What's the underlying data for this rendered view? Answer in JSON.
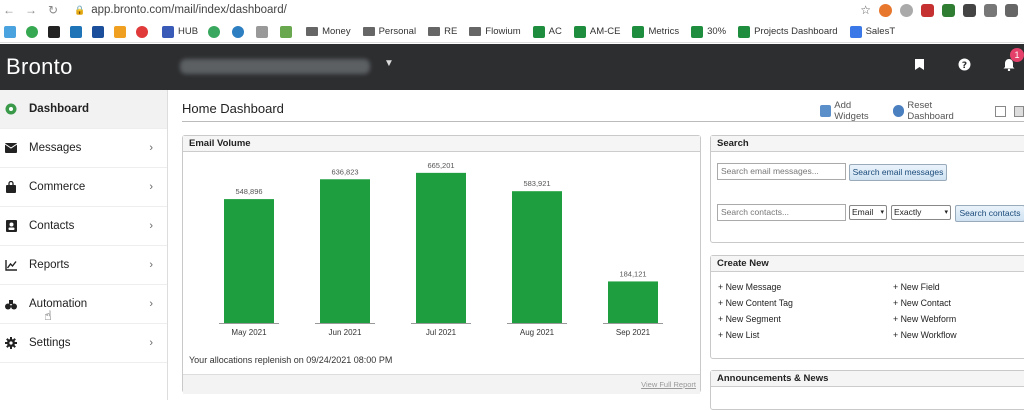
{
  "browser": {
    "url": "app.bronto.com/mail/index/dashboard/",
    "bookmarks": [
      "HUB",
      "Money",
      "Personal",
      "RE",
      "Flowium",
      "AC",
      "AM-CE",
      "Metrics",
      "30%",
      "Projects Dashboard",
      "SalesT"
    ]
  },
  "header": {
    "logo": "Bronto",
    "notification_count": "1"
  },
  "sidebar": {
    "items": [
      {
        "label": "Dashboard",
        "icon": "dashboard-icon"
      },
      {
        "label": "Messages",
        "icon": "envelope-icon"
      },
      {
        "label": "Commerce",
        "icon": "bag-icon"
      },
      {
        "label": "Contacts",
        "icon": "contacts-icon"
      },
      {
        "label": "Reports",
        "icon": "chart-icon"
      },
      {
        "label": "Automation",
        "icon": "automation-icon"
      },
      {
        "label": "Settings",
        "icon": "gear-icon"
      }
    ]
  },
  "main": {
    "title": "Home Dashboard",
    "add_widgets": "Add Widgets",
    "reset_dashboard": "Reset Dashboard"
  },
  "email_volume": {
    "title": "Email Volume",
    "allocation_note": "Your allocations replenish on 09/24/2021 08:00 PM",
    "view_full_report": "View Full Report"
  },
  "search": {
    "title": "Search",
    "messages_placeholder": "Search email messages...",
    "messages_button": "Search email messages",
    "contacts_placeholder": "Search contacts...",
    "field_select": "Email",
    "match_select": "Exactly",
    "contacts_button": "Search contacts"
  },
  "create_new": {
    "title": "Create New",
    "left": [
      "+ New Message",
      "+ New Content Tag",
      "+ New Segment",
      "+ New List"
    ],
    "right": [
      "+ New Field",
      "+ New Contact",
      "+ New Webform",
      "+ New Workflow"
    ]
  },
  "announcements": {
    "title": "Announcements & News"
  },
  "colors": {
    "bar": "#1e9e3e",
    "header_bg": "#2c2e30"
  },
  "chart_data": {
    "type": "bar",
    "title": "Email Volume",
    "categories": [
      "May 2021",
      "Jun 2021",
      "Jul 2021",
      "Aug 2021",
      "Sep 2021"
    ],
    "values": [
      548896,
      636823,
      665201,
      583921,
      184121
    ],
    "value_labels": [
      "548,896",
      "636,823",
      "665,201",
      "583,921",
      "184,121"
    ],
    "xlabel": "",
    "ylabel": "",
    "ylim": [
      0,
      700000
    ],
    "grid": false
  }
}
